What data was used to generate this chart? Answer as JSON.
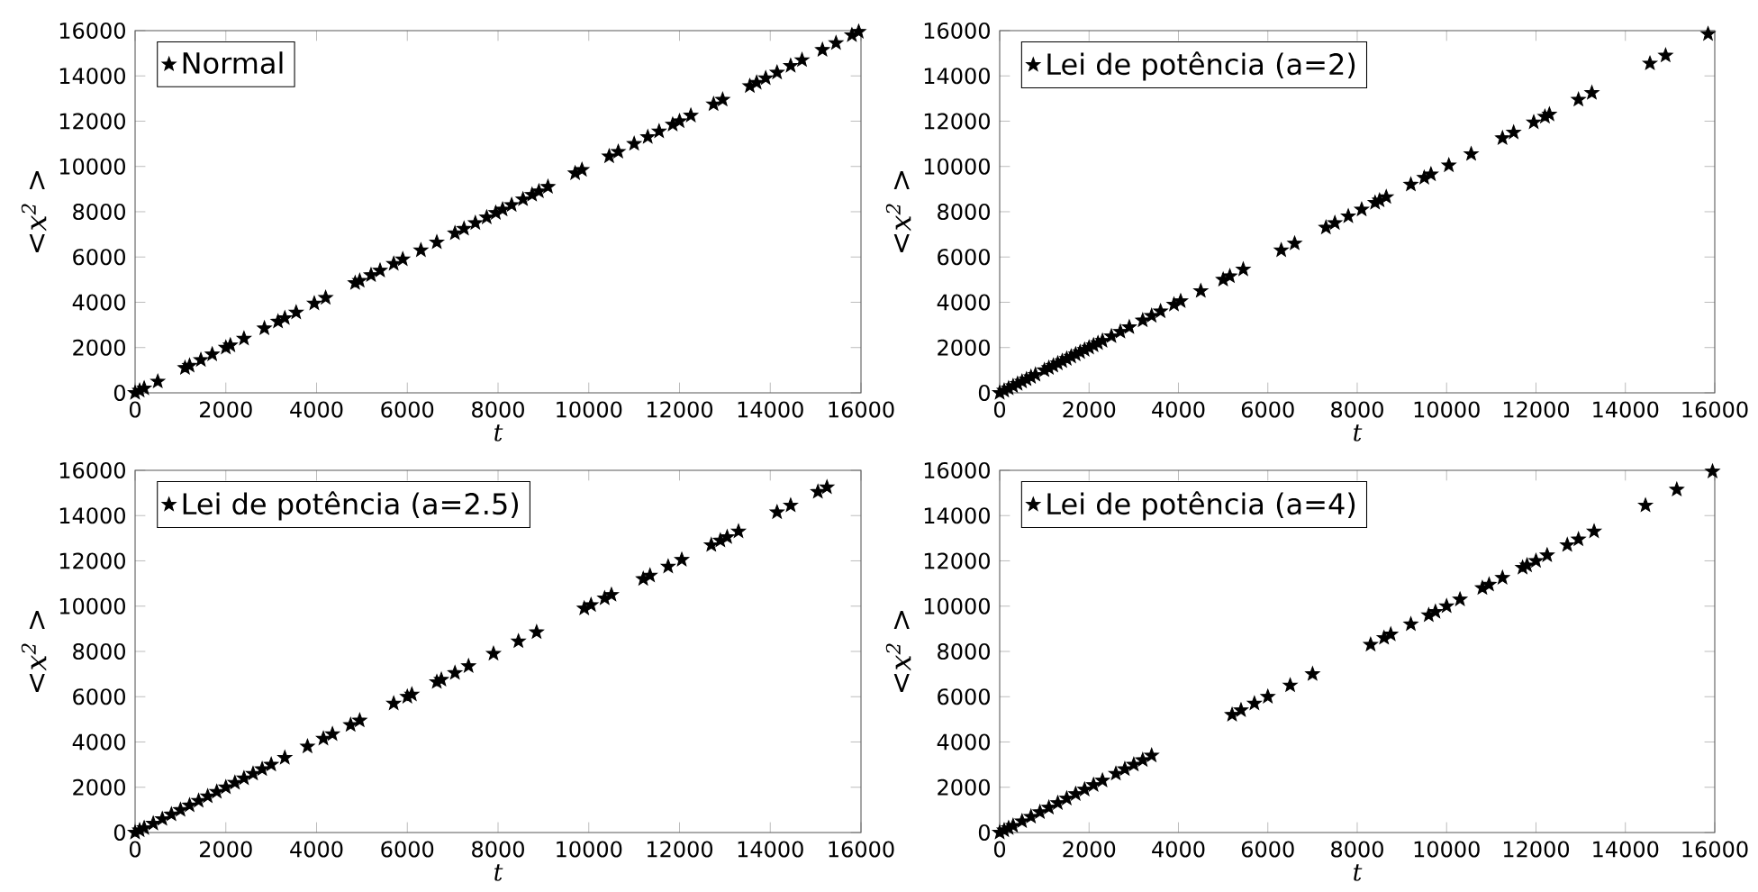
{
  "chart_data": [
    {
      "type": "scatter",
      "xlabel": "t",
      "ylabel": "<x$^{2}$ >",
      "xlim": [
        0,
        16000
      ],
      "ylim": [
        0,
        16000
      ],
      "xticks": [
        0,
        2000,
        4000,
        6000,
        8000,
        10000,
        12000,
        14000,
        16000
      ],
      "yticks": [
        0,
        2000,
        4000,
        6000,
        8000,
        10000,
        12000,
        14000,
        16000
      ],
      "marker": "star",
      "legend": "top left",
      "grid": false,
      "series": [
        {
          "name": "Normal",
          "color": "#000000",
          "x": [
            0,
            100,
            200,
            500,
            1100,
            1200,
            1450,
            1700,
            2000,
            2100,
            2400,
            2850,
            3150,
            3300,
            3550,
            3950,
            4200,
            4850,
            4950,
            5200,
            5400,
            5700,
            5900,
            6300,
            6650,
            7050,
            7250,
            7500,
            7750,
            7950,
            8100,
            8300,
            8550,
            8750,
            8900,
            9100,
            9700,
            9850,
            10450,
            10650,
            11000,
            11300,
            11550,
            11850,
            12000,
            12250,
            12750,
            12950,
            13550,
            13700,
            13900,
            14150,
            14450,
            14700,
            15150,
            15450,
            15800,
            15950
          ],
          "values": [
            0,
            100,
            200,
            500,
            1100,
            1200,
            1450,
            1700,
            2000,
            2100,
            2400,
            2850,
            3150,
            3300,
            3550,
            3950,
            4200,
            4850,
            4950,
            5200,
            5400,
            5700,
            5900,
            6300,
            6650,
            7050,
            7250,
            7500,
            7750,
            7950,
            8100,
            8300,
            8550,
            8750,
            8900,
            9100,
            9700,
            9850,
            10450,
            10650,
            11000,
            11300,
            11550,
            11850,
            12000,
            12250,
            12750,
            12950,
            13550,
            13700,
            13900,
            14150,
            14450,
            14700,
            15150,
            15450,
            15800,
            15950
          ]
        }
      ]
    },
    {
      "type": "scatter",
      "xlabel": "t",
      "ylabel": "<x$^{2}$ >",
      "xlim": [
        0,
        16000
      ],
      "ylim": [
        0,
        16000
      ],
      "xticks": [
        0,
        2000,
        4000,
        6000,
        8000,
        10000,
        12000,
        14000,
        16000
      ],
      "yticks": [
        0,
        2000,
        4000,
        6000,
        8000,
        10000,
        12000,
        14000,
        16000
      ],
      "marker": "star",
      "legend": "top left",
      "grid": false,
      "series": [
        {
          "name": "Lei de potência (a=2)",
          "color": "#000000",
          "x": [
            0,
            100,
            200,
            300,
            400,
            500,
            600,
            700,
            800,
            1000,
            1100,
            1200,
            1300,
            1400,
            1500,
            1600,
            1700,
            1800,
            1900,
            2000,
            2100,
            2200,
            2300,
            2500,
            2700,
            2900,
            3200,
            3400,
            3600,
            3900,
            4050,
            4500,
            5000,
            5150,
            5450,
            6300,
            6600,
            7300,
            7500,
            7800,
            8100,
            8400,
            8500,
            8650,
            9200,
            9500,
            9650,
            10050,
            10550,
            11250,
            11500,
            11950,
            12200,
            12300,
            12950,
            13250,
            14550,
            14900,
            15850
          ],
          "values": [
            0,
            100,
            200,
            300,
            400,
            500,
            600,
            700,
            800,
            1000,
            1100,
            1200,
            1300,
            1400,
            1500,
            1600,
            1700,
            1800,
            1900,
            2000,
            2100,
            2200,
            2300,
            2500,
            2700,
            2900,
            3200,
            3400,
            3600,
            3900,
            4050,
            4500,
            5000,
            5150,
            5450,
            6300,
            6600,
            7300,
            7500,
            7800,
            8100,
            8400,
            8500,
            8650,
            9200,
            9500,
            9650,
            10050,
            10550,
            11250,
            11500,
            11950,
            12200,
            12300,
            12950,
            13250,
            14550,
            14900,
            15850
          ]
        }
      ]
    },
    {
      "type": "scatter",
      "xlabel": "t",
      "ylabel": "<x$^{2}$ >",
      "xlim": [
        0,
        16000
      ],
      "ylim": [
        0,
        16000
      ],
      "xticks": [
        0,
        2000,
        4000,
        6000,
        8000,
        10000,
        12000,
        14000,
        16000
      ],
      "yticks": [
        0,
        2000,
        4000,
        6000,
        8000,
        10000,
        12000,
        14000,
        16000
      ],
      "marker": "star",
      "legend": "top left",
      "grid": false,
      "series": [
        {
          "name": "Lei de potência (a=2.5)",
          "color": "#000000",
          "x": [
            0,
            100,
            200,
            400,
            600,
            800,
            1000,
            1200,
            1400,
            1600,
            1800,
            2000,
            2200,
            2400,
            2600,
            2800,
            3000,
            3300,
            3800,
            4150,
            4350,
            4750,
            4950,
            5700,
            6000,
            6100,
            6650,
            6750,
            7050,
            7350,
            7900,
            8450,
            8850,
            9900,
            10050,
            10350,
            10500,
            11200,
            11350,
            11750,
            12050,
            12700,
            12900,
            13050,
            13300,
            14150,
            14450,
            15050,
            15250
          ],
          "values": [
            0,
            100,
            200,
            400,
            600,
            800,
            1000,
            1200,
            1400,
            1600,
            1800,
            2000,
            2200,
            2400,
            2600,
            2800,
            3000,
            3300,
            3800,
            4150,
            4350,
            4750,
            4950,
            5700,
            6000,
            6100,
            6650,
            6750,
            7050,
            7350,
            7900,
            8450,
            8850,
            9900,
            10050,
            10350,
            10500,
            11200,
            11350,
            11750,
            12050,
            12700,
            12900,
            13050,
            13300,
            14150,
            14450,
            15050,
            15250
          ]
        }
      ]
    },
    {
      "type": "scatter",
      "xlabel": "t",
      "ylabel": "<x$^{2}$ >",
      "xlim": [
        0,
        16000
      ],
      "ylim": [
        0,
        16000
      ],
      "xticks": [
        0,
        2000,
        4000,
        6000,
        8000,
        10000,
        12000,
        14000,
        16000
      ],
      "yticks": [
        0,
        2000,
        4000,
        6000,
        8000,
        10000,
        12000,
        14000,
        16000
      ],
      "marker": "star",
      "legend": "top left",
      "grid": false,
      "series": [
        {
          "name": "Lei de potência (a=4)",
          "color": "#000000",
          "x": [
            0,
            100,
            200,
            300,
            500,
            700,
            900,
            1100,
            1300,
            1500,
            1700,
            1900,
            2100,
            2300,
            2600,
            2800,
            3000,
            3200,
            3400,
            5200,
            5400,
            5700,
            6000,
            6500,
            7000,
            8300,
            8600,
            8750,
            9200,
            9600,
            9750,
            10000,
            10300,
            10800,
            10950,
            11250,
            11700,
            11800,
            12000,
            12250,
            12700,
            12950,
            13300,
            14450,
            15150,
            15950
          ],
          "values": [
            0,
            100,
            200,
            300,
            500,
            700,
            900,
            1100,
            1300,
            1500,
            1700,
            1900,
            2100,
            2300,
            2600,
            2800,
            3000,
            3200,
            3400,
            5200,
            5400,
            5700,
            6000,
            6500,
            7000,
            8300,
            8600,
            8750,
            9200,
            9600,
            9750,
            10000,
            10300,
            10800,
            10950,
            11250,
            11700,
            11800,
            12000,
            12250,
            12700,
            12950,
            13300,
            14450,
            15150,
            15950
          ]
        }
      ]
    }
  ]
}
